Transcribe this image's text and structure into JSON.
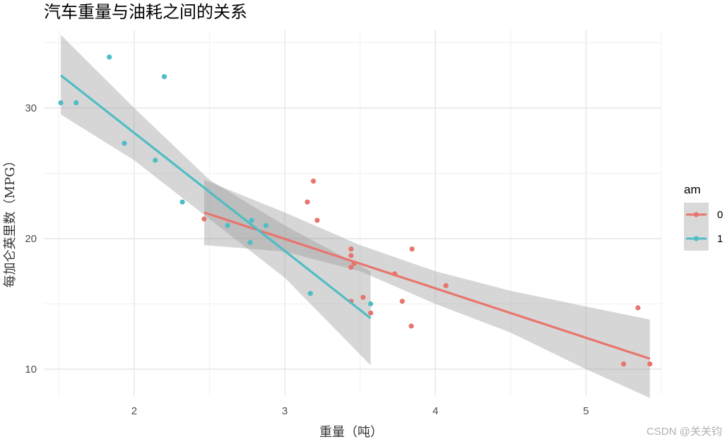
{
  "chart_data": {
    "type": "scatter",
    "title": "汽车重量与油耗之间的关系",
    "xlabel": "重量（吨）",
    "ylabel": "每加仑英里数（MPG）",
    "xlim": [
      1.4,
      5.5
    ],
    "ylim": [
      8,
      36
    ],
    "x_ticks": [
      2,
      3,
      4,
      5
    ],
    "y_ticks": [
      10,
      20,
      30
    ],
    "grid": true,
    "legend": {
      "title": "am",
      "position": "right"
    },
    "series": [
      {
        "name": "0",
        "color": "#E8756D",
        "points": [
          [
            2.465,
            21.5
          ],
          [
            3.15,
            22.8
          ],
          [
            3.19,
            24.4
          ],
          [
            3.215,
            21.4
          ],
          [
            3.44,
            18.7
          ],
          [
            3.44,
            19.2
          ],
          [
            3.44,
            17.8
          ],
          [
            3.44,
            15.2
          ],
          [
            3.46,
            18.1
          ],
          [
            3.52,
            15.5
          ],
          [
            3.57,
            14.3
          ],
          [
            3.73,
            17.3
          ],
          [
            3.78,
            15.2
          ],
          [
            3.84,
            13.3
          ],
          [
            3.845,
            19.2
          ],
          [
            4.07,
            16.4
          ],
          [
            5.25,
            10.4
          ],
          [
            5.345,
            14.7
          ],
          [
            5.424,
            10.4
          ]
        ],
        "trend_line": {
          "x": [
            2.465,
            5.424
          ],
          "y": [
            22.0,
            10.8
          ]
        },
        "confidence_band": {
          "x": [
            2.465,
            3.0,
            3.5,
            4.0,
            4.5,
            5.0,
            5.424
          ],
          "lower": [
            19.5,
            19.0,
            17.5,
            15.0,
            12.8,
            10.0,
            7.8
          ],
          "upper": [
            24.5,
            22.0,
            19.5,
            17.5,
            16.0,
            14.8,
            13.8
          ]
        }
      },
      {
        "name": "1",
        "color": "#4FBDC4",
        "points": [
          [
            1.513,
            30.4
          ],
          [
            1.615,
            30.4
          ],
          [
            1.835,
            33.9
          ],
          [
            1.935,
            27.3
          ],
          [
            2.14,
            26.0
          ],
          [
            2.2,
            32.4
          ],
          [
            2.32,
            22.8
          ],
          [
            2.62,
            21.0
          ],
          [
            2.77,
            19.7
          ],
          [
            2.78,
            21.4
          ],
          [
            2.875,
            21.0
          ],
          [
            3.17,
            15.8
          ],
          [
            3.57,
            15.0
          ]
        ],
        "trend_line": {
          "x": [
            1.513,
            3.57
          ],
          "y": [
            32.5,
            13.9
          ]
        },
        "confidence_band": {
          "x": [
            1.513,
            2.0,
            2.5,
            3.0,
            3.57
          ],
          "lower": [
            29.5,
            26.0,
            21.5,
            17.0,
            10.3
          ],
          "upper": [
            35.6,
            30.0,
            24.5,
            21.0,
            17.5
          ]
        }
      }
    ]
  },
  "watermark": "CSDN @关关钧"
}
